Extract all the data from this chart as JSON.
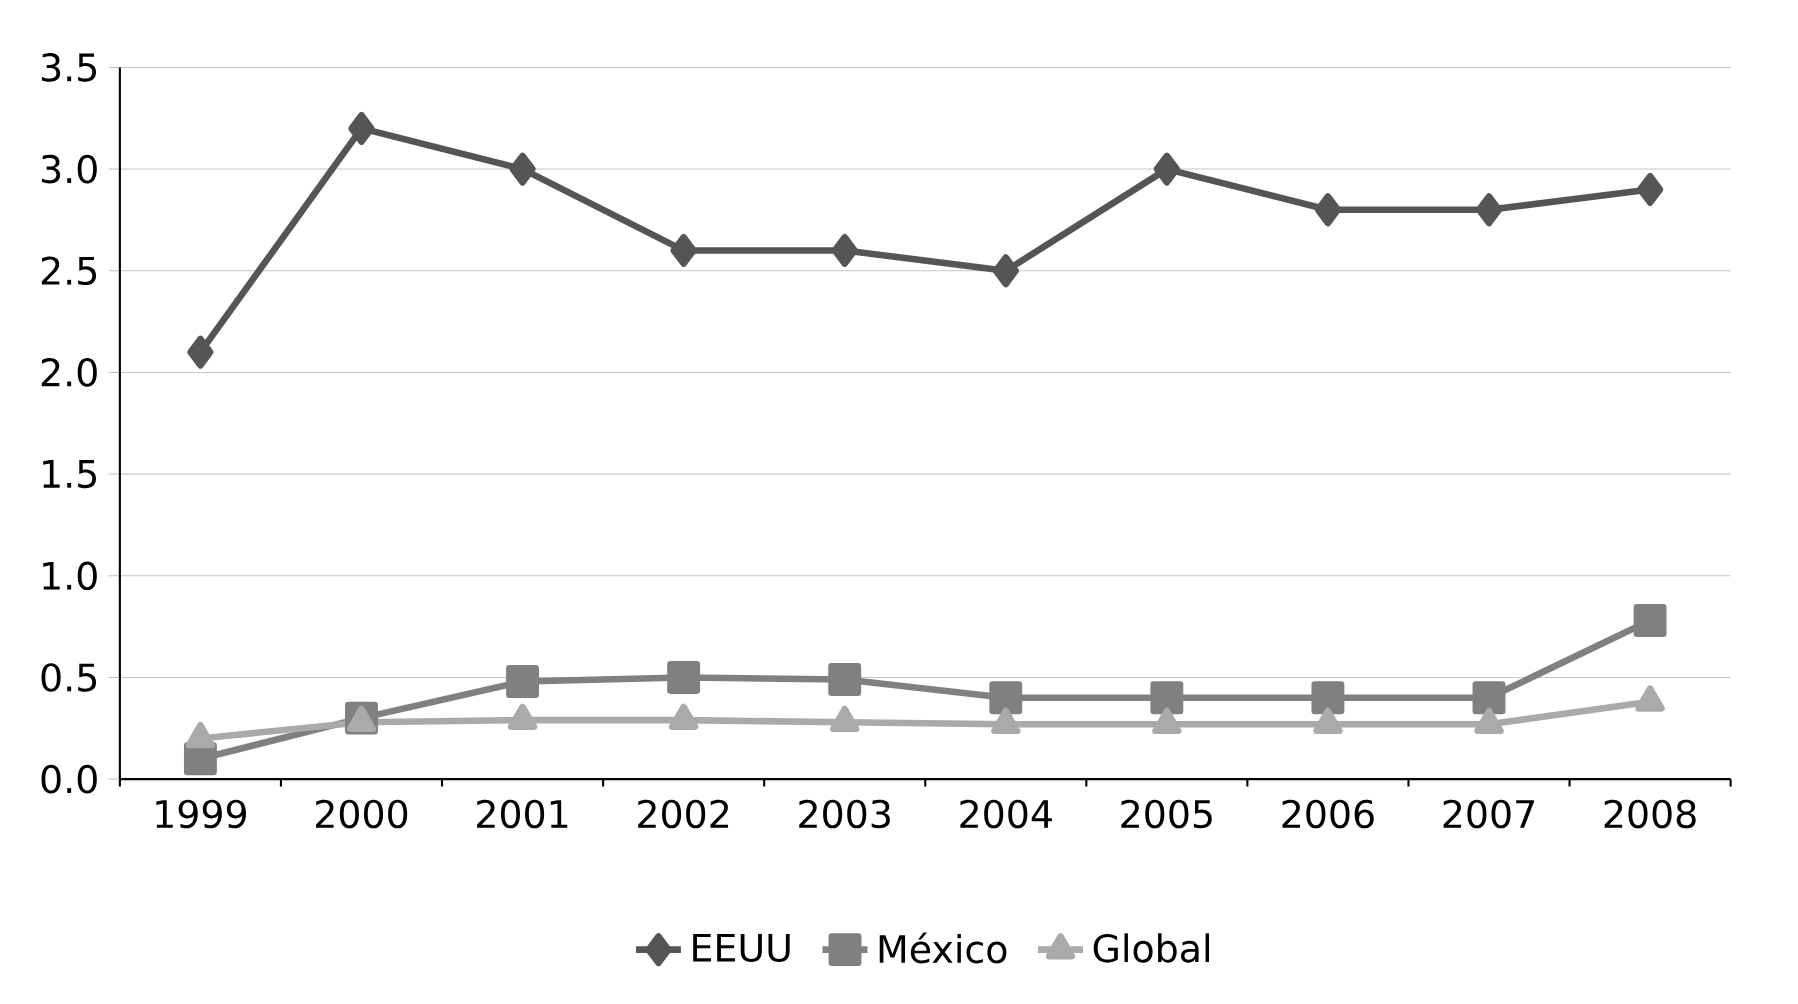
{
  "chart_data": {
    "type": "line",
    "categories": [
      "1999",
      "2000",
      "2001",
      "2002",
      "2003",
      "2004",
      "2005",
      "2006",
      "2007",
      "2008"
    ],
    "series": [
      {
        "name": "EEUU",
        "color": "#555555",
        "marker": "diamond",
        "values": [
          2.1,
          3.2,
          3.0,
          2.6,
          2.6,
          2.5,
          3.0,
          2.8,
          2.8,
          2.9
        ]
      },
      {
        "name": "México",
        "color": "#808080",
        "marker": "square",
        "values": [
          0.1,
          0.3,
          0.48,
          0.5,
          0.49,
          0.4,
          0.4,
          0.4,
          0.4,
          0.78
        ]
      },
      {
        "name": "Global",
        "color": "#aaaaaa",
        "marker": "triangle",
        "values": [
          0.2,
          0.28,
          0.29,
          0.29,
          0.28,
          0.27,
          0.27,
          0.27,
          0.27,
          0.38
        ]
      }
    ],
    "ylim": [
      0,
      3.5
    ],
    "yticks": [
      {
        "value": 0,
        "label": "0.0"
      },
      0.5,
      {
        "value": 1,
        "label": "1.0"
      },
      1.5,
      {
        "value": 2,
        "label": "2.0"
      },
      2.5,
      {
        "value": 3,
        "label": "3.0"
      },
      3.5
    ],
    "grid": "y",
    "legend": "bottom",
    "line_style": "solid"
  }
}
